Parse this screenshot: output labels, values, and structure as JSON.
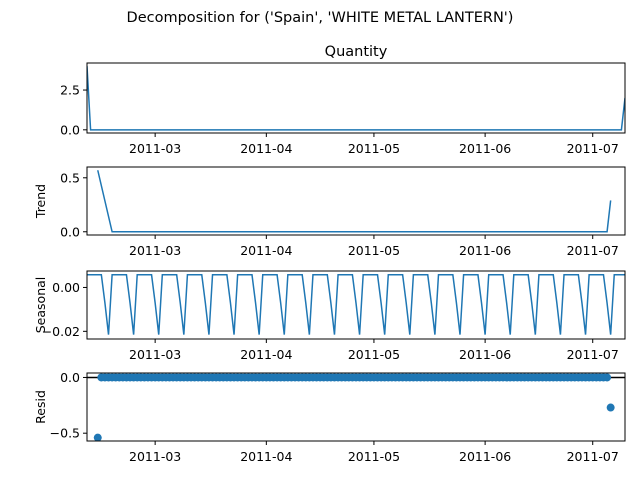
{
  "figure": {
    "suptitle": "Decomposition for ('Spain', 'WHITE METAL LANTERN')"
  },
  "chart_data": [
    {
      "type": "line",
      "panel": "observed",
      "title": "Quantity",
      "ylabel": "",
      "xlim": [
        "2011-02-10",
        "2011-07-10"
      ],
      "ylim": [
        -0.2,
        4.2
      ],
      "yticks": [
        0.0,
        2.5
      ],
      "ytick_labels": [
        "0.0",
        "2.5"
      ],
      "xtick_dates": [
        "2011-03-01",
        "2011-04-01",
        "2011-05-01",
        "2011-06-01",
        "2011-07-01"
      ],
      "xtick_labels": [
        "2011-03",
        "2011-04",
        "2011-05",
        "2011-06",
        "2011-07"
      ],
      "series": [
        {
          "x": [
            "2011-02-10",
            "2011-02-11",
            "2011-07-09",
            "2011-07-10"
          ],
          "y": [
            4.0,
            0.0,
            0.0,
            2.0
          ]
        }
      ]
    },
    {
      "type": "line",
      "panel": "trend",
      "title": "",
      "ylabel": "Trend",
      "xlim": [
        "2011-02-10",
        "2011-07-10"
      ],
      "ylim": [
        -0.03,
        0.6
      ],
      "yticks": [
        0.0,
        0.5
      ],
      "ytick_labels": [
        "0.0",
        "0.5"
      ],
      "xtick_dates": [
        "2011-03-01",
        "2011-04-01",
        "2011-05-01",
        "2011-06-01",
        "2011-07-01"
      ],
      "xtick_labels": [
        "2011-03",
        "2011-04",
        "2011-05",
        "2011-06",
        "2011-07"
      ],
      "series": [
        {
          "x": [
            "2011-02-13",
            "2011-02-17",
            "2011-07-05",
            "2011-07-06"
          ],
          "y": [
            0.57,
            0.0,
            0.0,
            0.29
          ]
        }
      ]
    },
    {
      "type": "line",
      "panel": "seasonal",
      "title": "",
      "ylabel": "Seasonal",
      "xlim": [
        "2011-02-10",
        "2011-07-10"
      ],
      "ylim": [
        -0.0235,
        0.0075
      ],
      "yticks": [
        0.0,
        -0.02
      ],
      "ytick_labels": [
        "0.00",
        "−0.02"
      ],
      "xtick_dates": [
        "2011-03-01",
        "2011-04-01",
        "2011-05-01",
        "2011-06-01",
        "2011-07-01"
      ],
      "xtick_labels": [
        "2011-03",
        "2011-04",
        "2011-05",
        "2011-06",
        "2011-07"
      ],
      "period_days": 7,
      "pattern": [
        0.0058,
        0.0058,
        0.0058,
        0.0058,
        0.0058,
        -0.0071,
        -0.0215
      ],
      "start": "2011-02-10"
    },
    {
      "type": "scatter",
      "panel": "resid",
      "title": "",
      "ylabel": "Resid",
      "xlim": [
        "2011-02-10",
        "2011-07-10"
      ],
      "ylim": [
        -0.57,
        0.04
      ],
      "yticks": [
        0.0,
        -0.5
      ],
      "ytick_labels": [
        "0.0",
        "−0.5"
      ],
      "xtick_dates": [
        "2011-03-01",
        "2011-04-01",
        "2011-05-01",
        "2011-06-01",
        "2011-07-01"
      ],
      "xtick_labels": [
        "2011-03",
        "2011-04",
        "2011-05",
        "2011-06",
        "2011-07"
      ],
      "zero_line": true,
      "dense_range": [
        "2011-02-14",
        "2011-07-05"
      ],
      "dense_value": 0.0,
      "outliers": [
        {
          "x": "2011-02-13",
          "y": -0.54
        },
        {
          "x": "2011-07-06",
          "y": -0.27
        }
      ]
    }
  ],
  "colors": {
    "line": "#1f77b4",
    "axis": "#000000"
  }
}
